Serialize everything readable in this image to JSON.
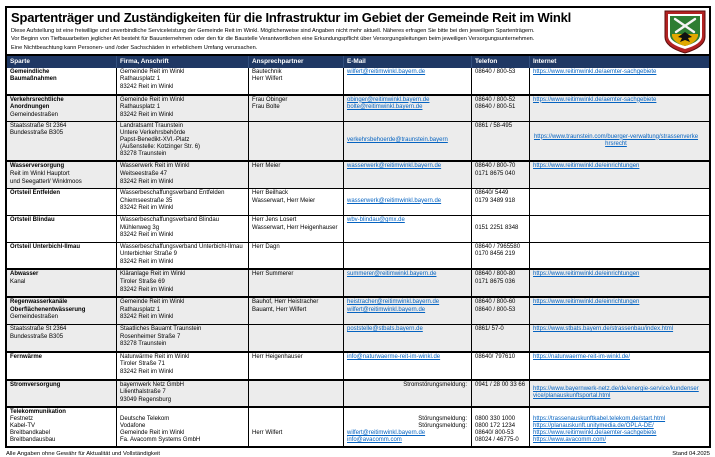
{
  "header": {
    "title": "Spartenträger und Zuständigkeiten für die Infrastruktur im Gebiet der Gemeinde Reit im Winkl",
    "notes": [
      "Diese Aufstellung ist eine freiwillige und unverbindliche Serviceleistung der Gemeinde Reit im Winkl. Möglicherweise sind Angaben nicht mehr aktuell. Näheres erfragen Sie bitte bei den jeweiligen Spartenträgern.",
      "Vor Beginn von Tiefbauarbeiten jeglicher Art besteht für Bauunternehmen oder den für die Baustelle Verantwortlichen eine Erkundungspflicht über Versorgungsleitungen beim jeweiligen Versorgungsunternehmen.",
      "Eine Nichtbeachtung kann Personen- und /oder Sachschäden in erheblichem Umfang verursachen."
    ],
    "crest_icon": "reit-im-winkl-coat-of-arms-icon"
  },
  "colors": {
    "header_bar": "#1f3864",
    "link": "#0563c1",
    "stripe": "#ececec",
    "border": "#000000",
    "crest_green": "#2e7d32",
    "crest_gold": "#e0a800",
    "crest_red": "#b22222"
  },
  "table": {
    "columns": [
      "Sparte",
      "Firma, Anschrift",
      "Ansprechpartner",
      "E-Mail",
      "Telefon",
      "Internet"
    ],
    "column_keys": [
      "sparte",
      "firma-anschrift",
      "ansprechpartner",
      "email",
      "telefon",
      "internet"
    ],
    "rows": [
      {
        "stripe": false,
        "thick": false,
        "cells": [
          [
            {
              "text": "Gemeindliche",
              "bold": true
            },
            {
              "text": "Baumaßnahmen",
              "bold": true
            }
          ],
          [
            {
              "text": "Gemeinde Reit im Winkl"
            },
            {
              "text": "Rathausplatz 1"
            },
            {
              "text": "83242 Reit im Winkl"
            }
          ],
          [
            {
              "text": "Bautechnik"
            },
            {
              "text": "Herr Wilfert"
            }
          ],
          [
            {
              "text": "wilfert@reitimwinkl.bayern.de",
              "link": true
            }
          ],
          [
            {
              "text": "08640 / 800-53"
            }
          ],
          [
            {
              "text": "https://www.reitimwinkl.de/aemter-sachgebiete",
              "link": true
            }
          ]
        ]
      },
      {
        "stripe": true,
        "thick": true,
        "cells": [
          [
            {
              "text": "Verkehrsrechtliche",
              "bold": true
            },
            {
              "text": "Anordnungen",
              "bold": true
            },
            {
              "text": "Gemeindestraßen"
            }
          ],
          [
            {
              "text": "Gemeinde Reit im Winkl"
            },
            {
              "text": "Rathausplatz 1"
            },
            {
              "text": "83242 Reit im Winkl"
            }
          ],
          [
            {
              "text": "Frau Obinger"
            },
            {
              "text": "Frau Bolte"
            }
          ],
          [
            {
              "text": "obinger@reitimwinkl.bayern.de",
              "link": true
            },
            {
              "text": "bolte@reitimwinkl.bayern.de",
              "link": true
            }
          ],
          [
            {
              "text": "08640 / 800-52"
            },
            {
              "text": "08640 / 800-51"
            }
          ],
          [
            {
              "text": "https://www.reitimwinkl.de/aemter-sachgebiete",
              "link": true
            }
          ]
        ]
      },
      {
        "stripe": true,
        "thick": false,
        "cells": [
          [
            {
              "text": "Staatsstraße St 2364"
            },
            {
              "text": "Bundesstraße B305"
            }
          ],
          [
            {
              "text": "Landratsamt Traunstein"
            },
            {
              "text": "Untere Verkehrsbehörde"
            },
            {
              "text": "Papst-Benedikt-XVI.-Platz"
            },
            {
              "text": "(Außenstelle: Kotzinger Str. 6)"
            },
            {
              "text": "83278 Traunstein"
            }
          ],
          [],
          [
            {
              "text": ""
            },
            {
              "text": ""
            },
            {
              "text": "verkehrsbehoerde@traunstein.bayern",
              "link": true
            }
          ],
          [
            {
              "text": "0861 / 58-495"
            }
          ],
          {
            "vcenter": true,
            "lines": [
              {
                "text": "https://www.traunstein.com/buerger-verwaltung/strassenverkehrsrecht",
                "link": true,
                "center": true
              }
            ]
          }
        ]
      },
      {
        "stripe": true,
        "thick": true,
        "cells": [
          [
            {
              "text": "Wasserversorgung",
              "bold": true
            },
            {
              "text": "Reit im Winkl Hauptort"
            },
            {
              "text": "und Seegatterl/ Winklmoos"
            }
          ],
          [
            {
              "text": "Wasserwerk Reit im Winkl"
            },
            {
              "text": "Weitseestraße 47"
            },
            {
              "text": "83242 Reit im Winkl"
            }
          ],
          [
            {
              "text": "Herr Meier"
            }
          ],
          [
            {
              "text": "wasserwerk@reitimwinkl.bayern.de",
              "link": true
            }
          ],
          [
            {
              "text": "08640 / 800-70"
            },
            {
              "text": "0171 8675 040"
            }
          ],
          [
            {
              "text": "https://www.reitimwinkl.de/einrichtungen",
              "link": true
            }
          ]
        ]
      },
      {
        "stripe": false,
        "thick": false,
        "cells": [
          [
            {
              "text": "Ortsteil Entfelden",
              "bold": true
            }
          ],
          [
            {
              "text": "Wasserbeschaffungsverband Entfelden"
            },
            {
              "text": "Chiemseestraße 35"
            },
            {
              "text": "83242 Reit im Winkl"
            }
          ],
          [
            {
              "text": "Herr Beilhack"
            },
            {
              "text": "Wasserwart, Herr Meier"
            }
          ],
          [
            {
              "text": ""
            },
            {
              "text": "wasserwerk@reitimwinkl.bayern.de",
              "link": true
            }
          ],
          [
            {
              "text": "08640/ 5449"
            },
            {
              "text": "0179 3489 918"
            }
          ],
          []
        ]
      },
      {
        "stripe": false,
        "thick": false,
        "cells": [
          [
            {
              "text": "Ortsteil Blindau",
              "bold": true
            }
          ],
          [
            {
              "text": "Wasserbeschaffungsverband Blindau"
            },
            {
              "text": "Mühlenweg 3g"
            },
            {
              "text": "83242 Reit im Winkl"
            }
          ],
          [
            {
              "text": "Herr Jens Losert"
            },
            {
              "text": "Wasserwart, Herr Heigenhauser"
            }
          ],
          [
            {
              "text": "wbv-blindau@gmx.de",
              "link": true
            }
          ],
          [
            {
              "text": ""
            },
            {
              "text": "0151 2251 8348"
            }
          ],
          []
        ]
      },
      {
        "stripe": false,
        "thick": false,
        "cells": [
          [
            {
              "text": "Ortsteil Unterbichl-Ilmau",
              "bold": true
            }
          ],
          [
            {
              "text": "Wasserbeschaffungsverband Unterbichl-Ilmau"
            },
            {
              "text": "Unterbichler Straße 9"
            },
            {
              "text": "83242 Reit im Winkl"
            }
          ],
          [
            {
              "text": "Herr Dagn"
            }
          ],
          [],
          [
            {
              "text": "08640 / 7965580"
            },
            {
              "text": "0170 8456 219"
            }
          ],
          []
        ]
      },
      {
        "stripe": true,
        "thick": true,
        "cells": [
          [
            {
              "text": "Abwasser",
              "bold": true
            },
            {
              "text": "Kanal"
            }
          ],
          [
            {
              "text": "Kläranlage Reit im Winkl"
            },
            {
              "text": "Tiroler Straße 69"
            },
            {
              "text": "83242 Reit im Winkl"
            }
          ],
          [
            {
              "text": "Herr Summerer"
            }
          ],
          [
            {
              "text": "summerer@reitimwinkl.bayern.de",
              "link": true
            }
          ],
          [
            {
              "text": "08640 / 800-80"
            },
            {
              "text": "0171 8675 036"
            }
          ],
          [
            {
              "text": "https://www.reitimwinkl.de/einrichtungen",
              "link": true
            }
          ]
        ]
      },
      {
        "stripe": true,
        "thick": true,
        "cells": [
          [
            {
              "text": "Regenwasserkanäle",
              "bold": true
            },
            {
              "text": "Oberflächenentwässerung",
              "bold": true
            },
            {
              "text": "Gemeindestraßen"
            }
          ],
          [
            {
              "text": "Gemeinde Reit im Winkl"
            },
            {
              "text": "Rathausplatz 1"
            },
            {
              "text": "83242 Reit im Winkl"
            }
          ],
          [
            {
              "text": "Bauhof, Herr Heistracher"
            },
            {
              "text": "Bauamt, Herr Wilfert"
            }
          ],
          [
            {
              "text": "heistracher@reitimwinkl.bayern.de",
              "link": true
            },
            {
              "text": "wilfert@reitimwinkl.bayern.de",
              "link": true
            }
          ],
          [
            {
              "text": "08640 / 800-60"
            },
            {
              "text": "08640 / 800-53"
            }
          ],
          [
            {
              "text": "https://www.reitimwinkl.de/einrichtungen",
              "link": true
            }
          ]
        ]
      },
      {
        "stripe": true,
        "thick": false,
        "cells": [
          [
            {
              "text": "Staatsstraße St 2364"
            },
            {
              "text": "Bundesstraße B305"
            }
          ],
          [
            {
              "text": "Staatliches Bauamt Traunstein"
            },
            {
              "text": "Rosenheimer Straße 7"
            },
            {
              "text": "83278 Traunstein"
            }
          ],
          [],
          [
            {
              "text": "poststelle@stbats.bayern.de",
              "link": true
            }
          ],
          [
            {
              "text": "0861/ 57-0"
            }
          ],
          [
            {
              "text": "https://www.stbats.bayern.de/strassenbau/index.html",
              "link": true
            }
          ]
        ]
      },
      {
        "stripe": false,
        "thick": true,
        "cells": [
          [
            {
              "text": "Fernwärme",
              "bold": true
            }
          ],
          [
            {
              "text": "Naturwärme Reit im Winkl"
            },
            {
              "text": "Tiroler Straße 71"
            },
            {
              "text": "83242 Reit im Winkl"
            }
          ],
          [
            {
              "text": "Herr Heigenhauser"
            }
          ],
          [
            {
              "text": "info@naturwaerme-reit-im-winkl.de",
              "link": true
            }
          ],
          [
            {
              "text": "08640/ 797610"
            }
          ],
          [
            {
              "text": "https://naturwaerme-reit-im-winkl.de/",
              "link": true
            }
          ]
        ]
      },
      {
        "stripe": true,
        "thick": true,
        "cells": [
          [
            {
              "text": "Stromversorgung",
              "bold": true
            }
          ],
          [
            {
              "text": "bayernwerk Netz GmbH"
            },
            {
              "text": "Lilienthalstraße 7"
            },
            {
              "text": "93049 Regensburg"
            }
          ],
          [],
          [
            {
              "text": "Stromstörungsmeldung:",
              "right": true
            }
          ],
          [
            {
              "text": "0941 / 28 00 33 66"
            }
          ],
          {
            "vcenter": true,
            "lines": [
              {
                "text": "https://www.bayernwerk-netz.de/de/energie-service/kundenservice/planauskunftsportal.html",
                "link": true
              }
            ]
          }
        ]
      },
      {
        "stripe": false,
        "thick": true,
        "cells": [
          [
            {
              "text": "Telekommunikation",
              "bold": true
            },
            {
              "text": "Festnetz"
            },
            {
              "text": "Kabel-TV"
            },
            {
              "text": "Breitbandkabel"
            },
            {
              "text": "Breitbandausbau"
            }
          ],
          [
            {
              "text": ""
            },
            {
              "text": "Deutsche Telekom"
            },
            {
              "text": "Vodafone"
            },
            {
              "text": "Gemeinde Reit im Winkl"
            },
            {
              "text": "Fa. Avacomm Systems GmbH"
            }
          ],
          [
            {
              "text": ""
            },
            {
              "text": ""
            },
            {
              "text": ""
            },
            {
              "text": "Herr Wilfert"
            }
          ],
          [
            {
              "text": ""
            },
            {
              "text": "Störungsmeldung:",
              "right": true
            },
            {
              "text": "Störungsmeldung:",
              "right": true
            },
            {
              "text": "wilfert@reitimwinkl.bayern.de",
              "link": true
            },
            {
              "text": "info@avacomm.com",
              "link": true
            }
          ],
          [
            {
              "text": ""
            },
            {
              "text": "0800 330 1000"
            },
            {
              "text": "0800 172 1234"
            },
            {
              "text": "08640/ 800-53"
            },
            {
              "text": "08024 / 46775-0"
            }
          ],
          [
            {
              "text": ""
            },
            {
              "text": "https://trassenauskunftkabel.telekom.de/start.html",
              "link": true
            },
            {
              "text": "https://planauskunft.unitymedia.de/OPLA-DE/",
              "link": true
            },
            {
              "text": "https://www.reitimwinkl.de/aemter-sachgebiete",
              "link": true
            },
            {
              "text": "https://www.avacomm.com/",
              "link": true
            }
          ]
        ]
      }
    ]
  },
  "footer": {
    "left": "Alle Angaben ohne Gewähr für Aktualität und Vollständigkeit",
    "right": "Stand 04.2025"
  }
}
